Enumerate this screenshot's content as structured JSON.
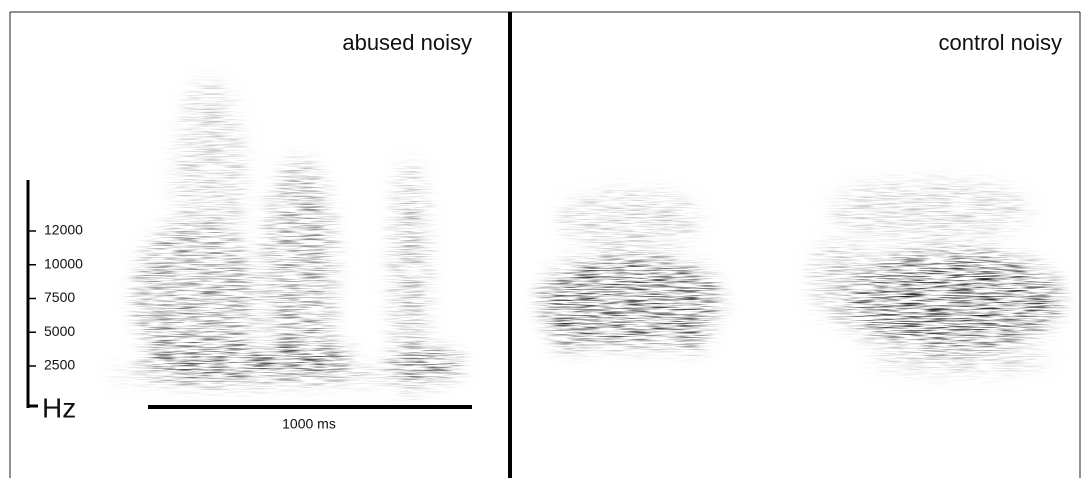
{
  "panels": [
    {
      "title": "abused noisy"
    },
    {
      "title": "control noisy"
    }
  ],
  "frequency_axis": {
    "label": "Hz",
    "ticks": [
      12000,
      10000,
      7500,
      5000,
      2500
    ]
  },
  "time_scale": {
    "label": "1000 ms"
  }
}
